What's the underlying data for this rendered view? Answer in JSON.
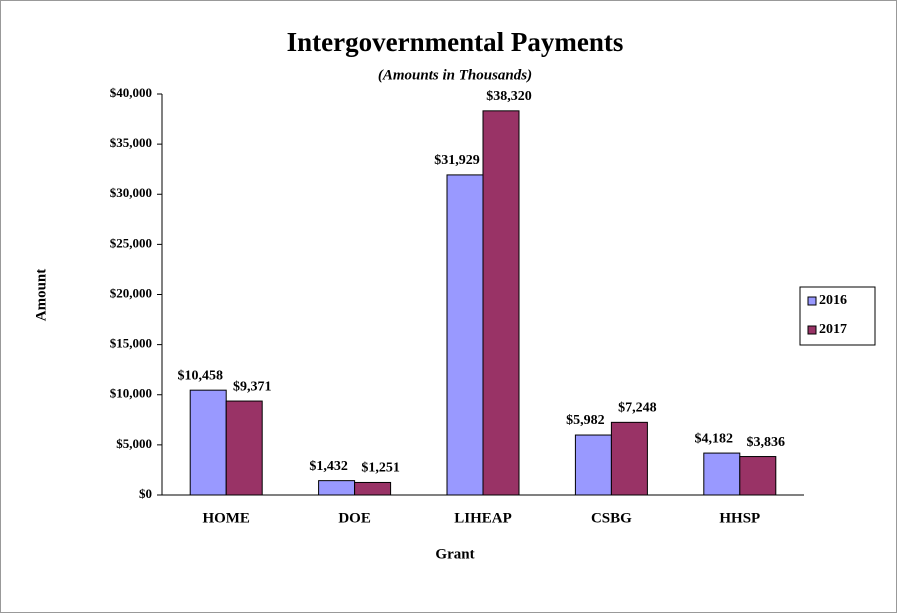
{
  "chart_data": {
    "type": "bar",
    "title": "Intergovernmental Payments",
    "subtitle": "(Amounts in Thousands)",
    "x_label": "Grant",
    "y_label": "Amount",
    "categories": [
      "HOME",
      "DOE",
      "LIHEAP",
      "CSBG",
      "HHSP"
    ],
    "series": [
      {
        "name": "2016",
        "color": "#9999ff",
        "values": [
          10458,
          1432,
          31929,
          5982,
          4182
        ],
        "value_labels": [
          "$10,458",
          "$1,432",
          "$31,929",
          "$5,982",
          "$4,182"
        ]
      },
      {
        "name": "2017",
        "color": "#993366",
        "values": [
          9371,
          1251,
          38320,
          7248,
          3836
        ],
        "value_labels": [
          "$9,371",
          "$1,251",
          "$38,320",
          "$7,248",
          "$3,836"
        ]
      }
    ],
    "ylim": [
      0,
      40000
    ],
    "yticks": [
      {
        "value": 0,
        "label": "$0"
      },
      {
        "value": 5000,
        "label": "$5,000"
      },
      {
        "value": 10000,
        "label": "$10,000"
      },
      {
        "value": 15000,
        "label": "$15,000"
      },
      {
        "value": 20000,
        "label": "$20,000"
      },
      {
        "value": 25000,
        "label": "$25,000"
      },
      {
        "value": 30000,
        "label": "$30,000"
      },
      {
        "value": 35000,
        "label": "$35,000"
      },
      {
        "value": 40000,
        "label": "$40,000"
      }
    ],
    "grid": false,
    "legend": "right"
  }
}
